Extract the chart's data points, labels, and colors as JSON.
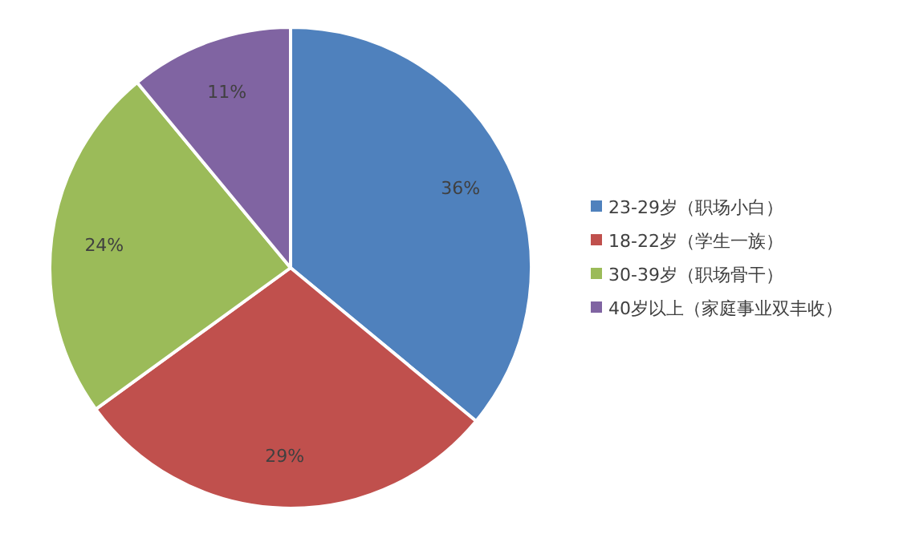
{
  "chart_data": {
    "type": "pie",
    "categories": [
      "23-29岁（职场小白）",
      "18-22岁（学生一族）",
      "30-39岁（职场骨干）",
      "40岁以上（家庭事业双丰收）"
    ],
    "values": [
      36,
      29,
      24,
      11
    ],
    "colors": [
      "#4f81bd",
      "#c0504d",
      "#9bbb59",
      "#8064a2"
    ],
    "value_labels": [
      "36%",
      "29%",
      "24%",
      "11%"
    ],
    "legend": "right"
  }
}
